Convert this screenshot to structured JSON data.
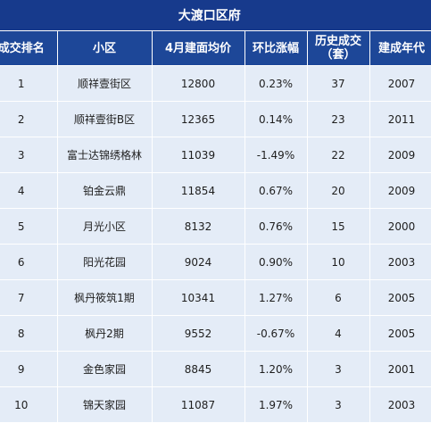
{
  "title": "大渡口区府",
  "headers": [
    {
      "line1": "成交排名",
      "line2": ""
    },
    {
      "line1": "小区",
      "line2": ""
    },
    {
      "line1": "4月建面均价",
      "line2": ""
    },
    {
      "line1": "环比涨幅",
      "line2": ""
    },
    {
      "line1": "历史成交",
      "line2": "（套）"
    },
    {
      "line1": "建成年代",
      "line2": ""
    }
  ],
  "rows": [
    {
      "rank": "1",
      "name": "顺祥壹街区",
      "price": "12800",
      "change": "0.23%",
      "deals": "37",
      "year": "2007"
    },
    {
      "rank": "2",
      "name": "顺祥壹街B区",
      "price": "12365",
      "change": "0.14%",
      "deals": "23",
      "year": "2011"
    },
    {
      "rank": "3",
      "name": "富士达锦绣格林",
      "price": "11039",
      "change": "-1.49%",
      "deals": "22",
      "year": "2009"
    },
    {
      "rank": "4",
      "name": "铂金云鼎",
      "price": "11854",
      "change": "0.67%",
      "deals": "20",
      "year": "2009"
    },
    {
      "rank": "5",
      "name": "月光小区",
      "price": "8132",
      "change": "0.76%",
      "deals": "15",
      "year": "2000"
    },
    {
      "rank": "6",
      "name": "阳光花园",
      "price": "9024",
      "change": "0.90%",
      "deals": "10",
      "year": "2003"
    },
    {
      "rank": "7",
      "name": "枫丹筱筑1期",
      "price": "10341",
      "change": "1.27%",
      "deals": "6",
      "year": "2005"
    },
    {
      "rank": "8",
      "name": "枫丹2期",
      "price": "9552",
      "change": "-0.67%",
      "deals": "4",
      "year": "2005"
    },
    {
      "rank": "9",
      "name": "金色家园",
      "price": "8845",
      "change": "1.20%",
      "deals": "3",
      "year": "2001"
    },
    {
      "rank": "10",
      "name": "锦天家园",
      "price": "11087",
      "change": "1.97%",
      "deals": "3",
      "year": "2003"
    }
  ]
}
